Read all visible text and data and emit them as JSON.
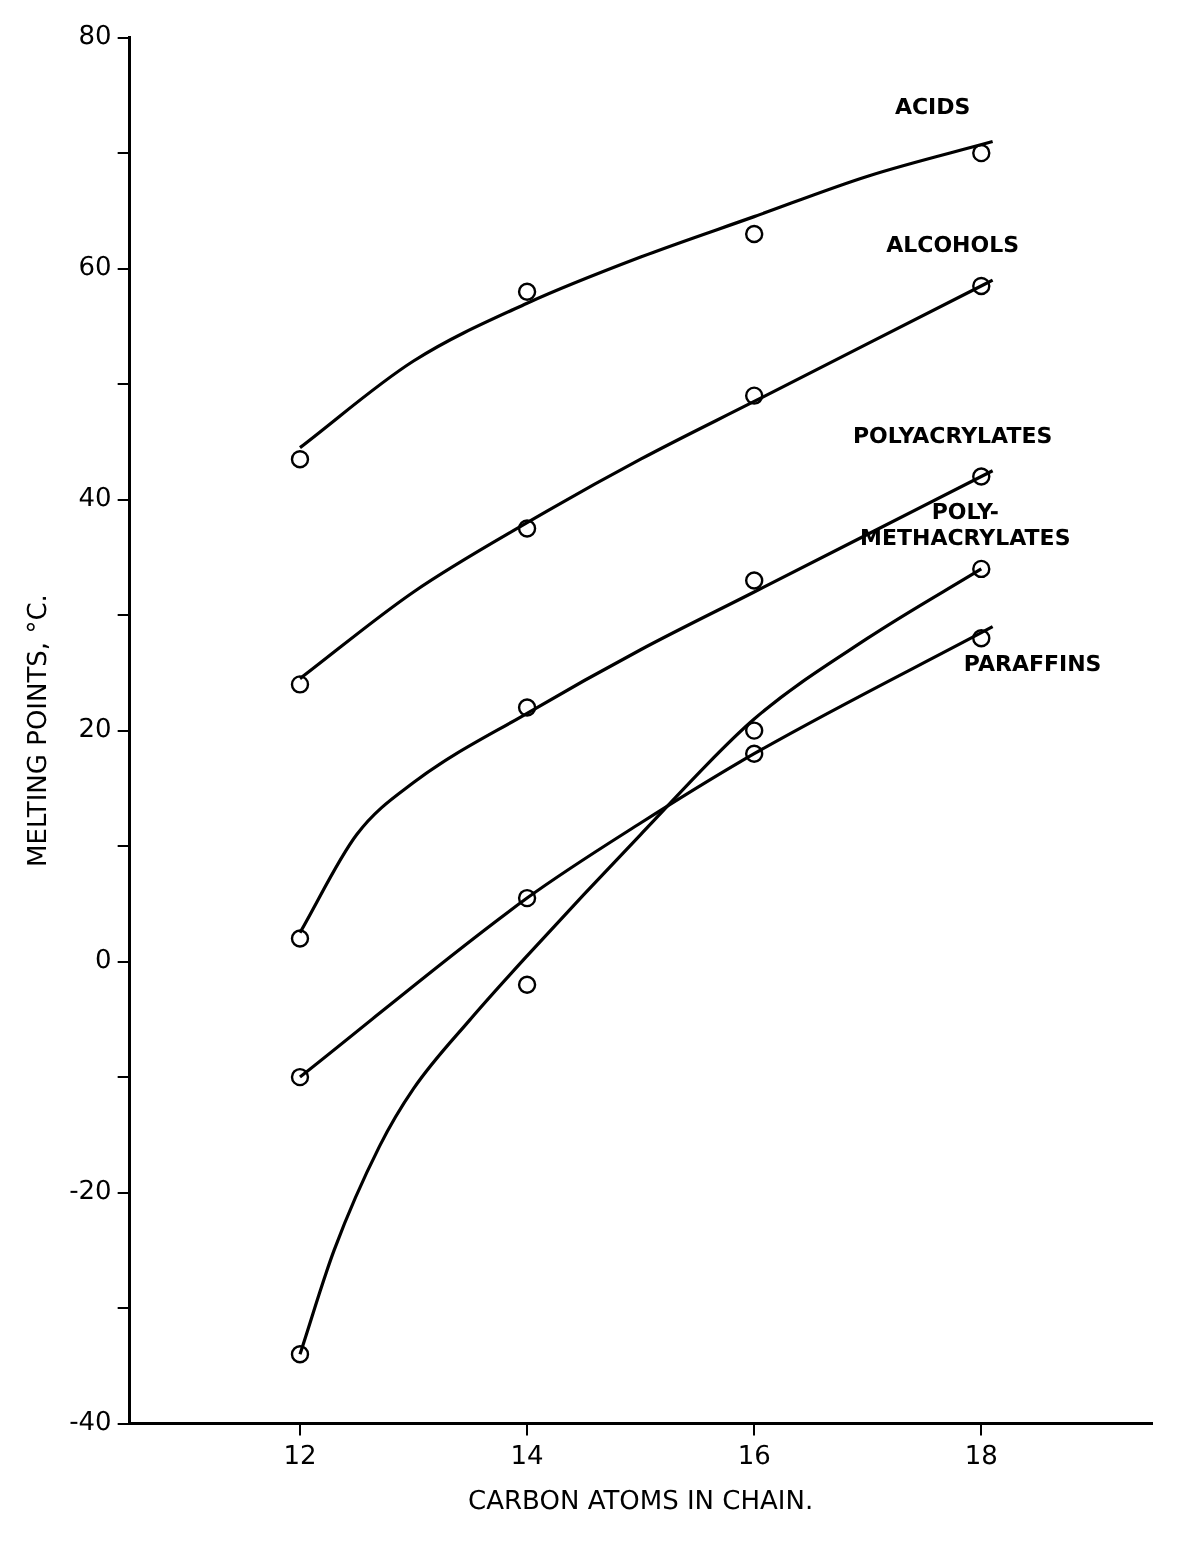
{
  "chart_data": {
    "type": "scatter",
    "xlabel": "CARBON ATOMS IN CHAIN.",
    "ylabel": "MELTING POINTS, °C.",
    "xlim": [
      10.5,
      19.5
    ],
    "xticks": [
      12,
      14,
      16,
      18
    ],
    "ylim": [
      -40,
      80
    ],
    "yticks": [
      -40,
      {
        "value": -30,
        "label": null
      },
      -20,
      {
        "value": -10,
        "label": null
      },
      0,
      {
        "value": 10,
        "label": null
      },
      20,
      {
        "value": 30,
        "label": null
      },
      40,
      {
        "value": 50,
        "label": null
      },
      60,
      {
        "value": 70,
        "label": null
      },
      80
    ],
    "grid": false,
    "legend": false,
    "marker": "circle",
    "series": [
      {
        "name": "ACIDS",
        "type": "line",
        "marker": "none",
        "color": "#000000",
        "x": [
          12,
          13,
          14,
          15,
          16,
          17,
          18.1
        ],
        "values": [
          44.5,
          52,
          57,
          61,
          64.5,
          68,
          71
        ]
      },
      {
        "name": "ALCOHOLS",
        "type": "line",
        "marker": "none",
        "color": "#000000",
        "x": [
          12,
          13,
          14,
          15,
          16,
          17,
          18.1
        ],
        "values": [
          24.5,
          32,
          38,
          43.5,
          48.5,
          53.5,
          59
        ]
      },
      {
        "name": "POLYACRYLATES",
        "type": "line",
        "marker": "none",
        "color": "#000000",
        "x": [
          12,
          12.5,
          13,
          14,
          15,
          16,
          17,
          18.1
        ],
        "values": [
          2.5,
          11,
          15.5,
          21.5,
          27,
          32,
          37,
          42.5
        ]
      },
      {
        "name": "POLY-\nMETHACRYLATES",
        "type": "line",
        "marker": "none",
        "color": "#000000",
        "x": [
          12,
          12.3,
          12.7,
          13,
          13.5,
          14,
          15,
          16,
          17,
          18
        ],
        "values": [
          -34,
          -25,
          -16,
          -11,
          -5,
          0.5,
          11,
          21,
          28,
          34
        ]
      },
      {
        "name": "PARAFFINS",
        "type": "line",
        "marker": "none",
        "color": "#000000",
        "x": [
          12,
          14,
          15,
          16,
          18.1
        ],
        "values": [
          -10,
          5.5,
          12,
          18,
          29
        ]
      },
      {
        "color": "#000000",
        "x": [
          12,
          14,
          16,
          18
        ],
        "values": [
          43.5,
          58,
          63,
          70
        ]
      },
      {
        "color": "#000000",
        "x": [
          12,
          14,
          16,
          18
        ],
        "values": [
          24,
          37.5,
          49,
          58.5
        ]
      },
      {
        "color": "#000000",
        "x": [
          12,
          14,
          16,
          18
        ],
        "values": [
          2,
          22,
          33,
          42
        ]
      },
      {
        "color": "#000000",
        "x": [
          12,
          14,
          16,
          18
        ],
        "values": [
          -34,
          -2,
          20,
          34
        ]
      },
      {
        "color": "#000000",
        "x": [
          12,
          14,
          16,
          18
        ],
        "values": [
          -10,
          5.5,
          18,
          28
        ]
      }
    ]
  }
}
